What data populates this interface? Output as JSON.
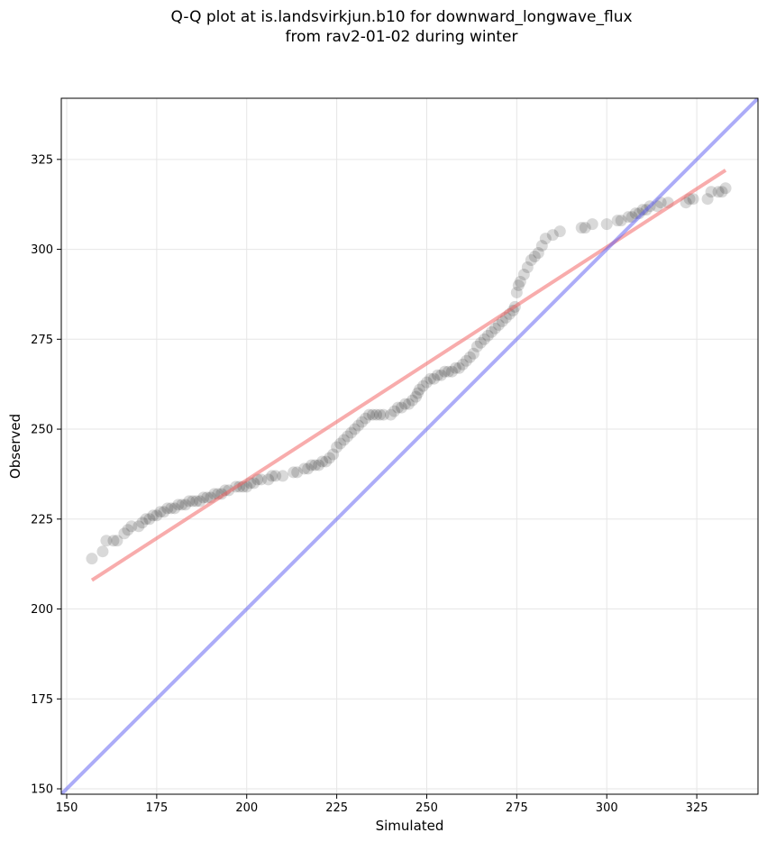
{
  "chart_data": {
    "type": "scatter",
    "title": "Q-Q plot at is.landsvirkjun.b10 for downward_longwave_flux",
    "subtitle": "from rav2-01-02 during winter",
    "xlabel": "Simulated",
    "ylabel": "Observed",
    "xlim": [
      148.5,
      342
    ],
    "ylim": [
      148.5,
      342
    ],
    "xticks": [
      150,
      175,
      200,
      225,
      250,
      275,
      300,
      325
    ],
    "yticks": [
      150,
      175,
      200,
      225,
      250,
      275,
      300,
      325
    ],
    "xticklabels": [
      "150",
      "175",
      "200",
      "225",
      "250",
      "275",
      "300",
      "325"
    ],
    "yticklabels": [
      "150",
      "175",
      "200",
      "225",
      "250",
      "275",
      "300",
      "325"
    ],
    "grid": true,
    "series": [
      {
        "kind": "points",
        "color": "#000000",
        "alpha": 0.15,
        "x": [
          157,
          160,
          161,
          163,
          164,
          166,
          167,
          168,
          170,
          171,
          172,
          173,
          174,
          175,
          176,
          177,
          178,
          179,
          180,
          181,
          182,
          183,
          184,
          185,
          186,
          187,
          188,
          189,
          190,
          191,
          192,
          193,
          194,
          195,
          197,
          198,
          199,
          200,
          201,
          202,
          203,
          204,
          206,
          207,
          208,
          210,
          213,
          214,
          216,
          217,
          218,
          219,
          220,
          221,
          222,
          223,
          224,
          225,
          226,
          227,
          228,
          229,
          230,
          231,
          232,
          233,
          234,
          235,
          236,
          237,
          238,
          240,
          241,
          242,
          243,
          244,
          245,
          246,
          247,
          247.5,
          248,
          249,
          250,
          251,
          252,
          253,
          254,
          255,
          256,
          257,
          258,
          259,
          260,
          261,
          262,
          263,
          264,
          265,
          266,
          267,
          268,
          269,
          270,
          271,
          272,
          273,
          274,
          274.5,
          275,
          275.5,
          276,
          277,
          278,
          279,
          280,
          281,
          282,
          283,
          285,
          287,
          293,
          294,
          296,
          300,
          303,
          304,
          306,
          307,
          308,
          309,
          310,
          311,
          312,
          314,
          315,
          317,
          322,
          323,
          324,
          328,
          329,
          331,
          332,
          333
        ],
        "y": [
          214,
          216,
          219,
          219,
          219,
          221,
          222,
          223,
          223,
          224,
          225,
          225,
          226,
          226,
          227,
          227,
          228,
          228,
          228,
          229,
          229,
          229,
          230,
          230,
          230,
          230,
          231,
          231,
          231,
          232,
          232,
          232,
          233,
          233,
          234,
          234,
          234,
          234,
          235,
          235,
          236,
          236,
          236,
          237,
          237,
          237,
          238,
          238,
          239,
          239,
          240,
          240,
          240,
          241,
          241,
          242,
          243,
          245,
          246,
          247,
          248,
          249,
          250,
          251,
          252,
          253,
          254,
          254,
          254,
          254,
          254,
          254,
          255,
          256,
          256,
          257,
          257,
          258,
          259,
          260,
          261,
          262,
          263,
          264,
          264,
          265,
          265,
          266,
          266,
          266,
          267,
          267,
          268,
          269,
          270,
          271,
          273,
          274,
          275,
          276,
          277,
          278,
          279,
          280,
          281,
          282,
          283,
          284,
          288,
          290,
          291,
          293,
          295,
          297,
          298,
          299,
          301,
          303,
          304,
          305,
          306,
          306,
          307,
          307,
          308,
          308,
          309,
          309,
          310,
          310,
          311,
          311,
          312,
          312,
          313,
          313,
          313,
          314,
          314,
          314,
          316,
          316,
          316,
          317
        ]
      },
      {
        "kind": "line",
        "color": "#f25a5a",
        "alpha": 0.5,
        "x": [
          157,
          333
        ],
        "y": [
          208,
          322
        ]
      },
      {
        "kind": "line",
        "color": "#5a5af2",
        "alpha": 0.5,
        "x": [
          148.5,
          342
        ],
        "y": [
          148.5,
          342
        ]
      }
    ]
  }
}
